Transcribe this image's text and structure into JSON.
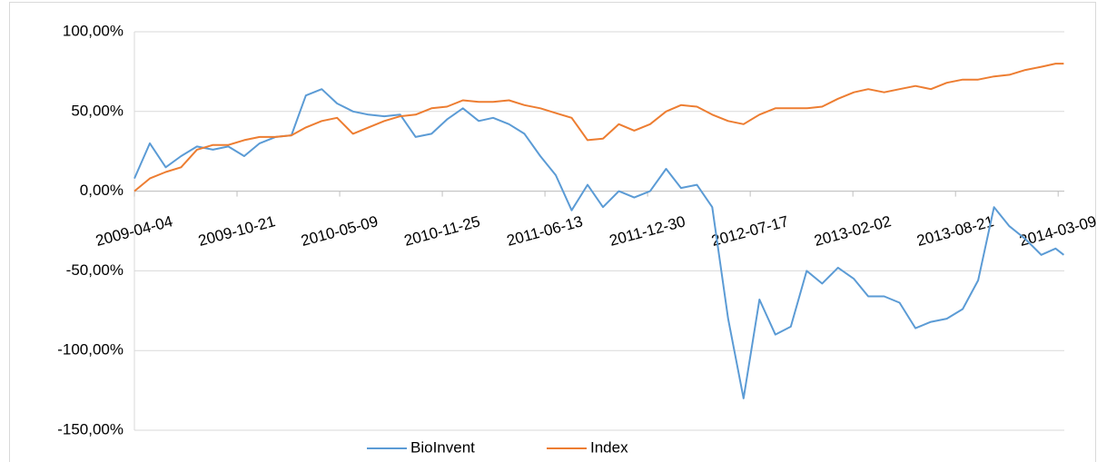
{
  "chart_data": {
    "type": "line",
    "x": [
      "2009-04-04",
      "2009-05-04",
      "2009-06-04",
      "2009-07-04",
      "2009-08-04",
      "2009-09-04",
      "2009-10-04",
      "2009-11-04",
      "2009-12-04",
      "2010-01-04",
      "2010-02-04",
      "2010-03-04",
      "2010-04-04",
      "2010-05-04",
      "2010-06-04",
      "2010-07-04",
      "2010-08-04",
      "2010-09-04",
      "2010-10-04",
      "2010-11-04",
      "2010-12-04",
      "2011-01-04",
      "2011-02-04",
      "2011-03-04",
      "2011-04-04",
      "2011-05-04",
      "2011-06-04",
      "2011-07-04",
      "2011-08-04",
      "2011-09-04",
      "2011-10-04",
      "2011-11-04",
      "2011-12-04",
      "2012-01-04",
      "2012-02-04",
      "2012-03-04",
      "2012-04-04",
      "2012-05-04",
      "2012-06-04",
      "2012-07-04",
      "2012-08-04",
      "2012-09-04",
      "2012-10-04",
      "2012-11-04",
      "2012-12-04",
      "2013-01-04",
      "2013-02-04",
      "2013-03-04",
      "2013-04-04",
      "2013-05-04",
      "2013-06-04",
      "2013-07-04",
      "2013-08-04",
      "2013-09-04",
      "2013-10-04",
      "2013-11-04",
      "2013-12-04",
      "2014-01-04",
      "2014-02-04",
      "2014-03-04",
      "2014-03-20"
    ],
    "series": [
      {
        "name": "BioInvent",
        "color": "#5b9bd5",
        "values": [
          8,
          30,
          15,
          22,
          28,
          26,
          28,
          22,
          30,
          34,
          35,
          60,
          64,
          55,
          50,
          48,
          47,
          48,
          34,
          36,
          45,
          52,
          44,
          46,
          42,
          36,
          22,
          10,
          -12,
          4,
          -10,
          0,
          -4,
          0,
          14,
          2,
          4,
          -10,
          -80,
          -130,
          -68,
          -90,
          -85,
          -50,
          -58,
          -48,
          -55,
          -66,
          -66,
          -70,
          -86,
          -82,
          -80,
          -74,
          -56,
          -10,
          -22,
          -30,
          -40,
          -36,
          -40
        ]
      },
      {
        "name": "Index",
        "color": "#ed7d31",
        "values": [
          0,
          8,
          12,
          15,
          26,
          29,
          29,
          32,
          34,
          34,
          35,
          40,
          44,
          46,
          36,
          40,
          44,
          47,
          48,
          52,
          53,
          57,
          56,
          56,
          57,
          54,
          52,
          49,
          46,
          32,
          33,
          42,
          38,
          42,
          50,
          54,
          53,
          48,
          44,
          42,
          48,
          52,
          52,
          52,
          53,
          58,
          62,
          64,
          62,
          64,
          66,
          64,
          68,
          70,
          70,
          72,
          73,
          76,
          78,
          80,
          80
        ]
      }
    ],
    "xlim": [
      "2009-04-04",
      "2014-03-21"
    ],
    "xticks": [
      "2009-04-04",
      "2009-10-21",
      "2010-05-09",
      "2010-11-25",
      "2011-06-13",
      "2011-12-30",
      "2012-07-17",
      "2013-02-02",
      "2013-08-21",
      "2014-03-09"
    ],
    "ylim": [
      -150,
      100
    ],
    "yticks": [
      {
        "value": -150,
        "label": "-150,00%"
      },
      {
        "value": -100,
        "label": "-100,00%"
      },
      {
        "value": -50,
        "label": "-50,00%"
      },
      {
        "value": 0,
        "label": "0,00%"
      },
      {
        "value": 50,
        "label": "50,00%"
      },
      {
        "value": 100,
        "label": "100,00%"
      }
    ],
    "grid": true,
    "legend": "bottom"
  }
}
